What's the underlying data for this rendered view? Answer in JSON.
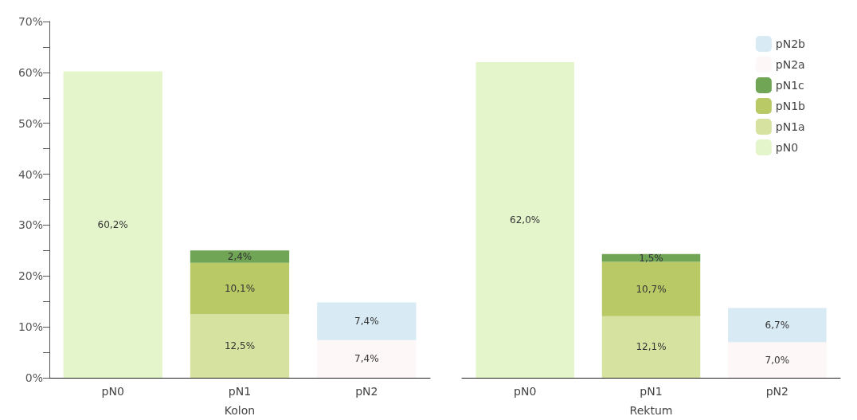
{
  "chart_data": [
    {
      "type": "bar",
      "xlabel": "Kolon",
      "categories": [
        "pN0",
        "pN1",
        "pN2"
      ],
      "stacked": true,
      "legend": false,
      "grid": false,
      "ylim": [
        0,
        70
      ],
      "yticks": [
        {
          "value": 0,
          "label": "0%"
        },
        {
          "value": 5,
          "label": null
        },
        {
          "value": 10,
          "label": "10%"
        },
        {
          "value": 15,
          "label": null
        },
        {
          "value": 20,
          "label": "20%"
        },
        {
          "value": 25,
          "label": null
        },
        {
          "value": 30,
          "label": "30%"
        },
        {
          "value": 35,
          "label": null
        },
        {
          "value": 40,
          "label": "40%"
        },
        {
          "value": 45,
          "label": null
        },
        {
          "value": 50,
          "label": "50%"
        },
        {
          "value": 55,
          "label": null
        },
        {
          "value": 60,
          "label": "60%"
        },
        {
          "value": 65,
          "label": null
        },
        {
          "value": 70,
          "label": "70%"
        }
      ],
      "series": [
        {
          "color": "#e4f5cc",
          "values": [
            60.2,
            null,
            null
          ],
          "value_labels": [
            "60,2%",
            null,
            null
          ]
        },
        {
          "color": "#d6e3a0",
          "values": [
            null,
            12.5,
            null
          ],
          "value_labels": [
            null,
            "12,5%",
            null
          ]
        },
        {
          "color": "#b8c965",
          "values": [
            null,
            10.1,
            null
          ],
          "value_labels": [
            null,
            "10,1%",
            null
          ]
        },
        {
          "color": "#6fa555",
          "values": [
            null,
            2.4,
            null
          ],
          "value_labels": [
            null,
            "2,4%",
            null
          ]
        },
        {
          "color": "#fdf7f7",
          "values": [
            null,
            null,
            7.4
          ],
          "value_labels": [
            null,
            null,
            "7,4%"
          ]
        },
        {
          "color": "#d8eaf4",
          "values": [
            null,
            null,
            7.4
          ],
          "value_labels": [
            null,
            null,
            "7,4%"
          ]
        }
      ]
    },
    {
      "type": "bar",
      "xlabel": "Rektum",
      "categories": [
        "pN0",
        "pN1",
        "pN2"
      ],
      "stacked": true,
      "legend": "top right",
      "grid": false,
      "tick_labels": "x",
      "ylim": [
        0,
        70
      ],
      "series": [
        {
          "name": "pN0",
          "color": "#e4f5cc",
          "values": [
            62.0,
            null,
            null
          ],
          "value_labels": [
            "62,0%",
            null,
            null
          ]
        },
        {
          "name": "pN1a",
          "color": "#d6e3a0",
          "values": [
            null,
            12.1,
            null
          ],
          "value_labels": [
            null,
            "12,1%",
            null
          ]
        },
        {
          "name": "pN1b",
          "color": "#b8c965",
          "values": [
            null,
            10.7,
            null
          ],
          "value_labels": [
            null,
            "10,7%",
            null
          ]
        },
        {
          "name": "pN1c",
          "color": "#6fa555",
          "values": [
            null,
            1.5,
            null
          ],
          "value_labels": [
            null,
            "1,5%",
            null
          ]
        },
        {
          "name": "pN2a",
          "color": "#fdf7f7",
          "values": [
            null,
            null,
            7.0
          ],
          "value_labels": [
            null,
            null,
            "7,0%"
          ]
        },
        {
          "name": "pN2b",
          "color": "#d8eaf4",
          "values": [
            null,
            null,
            6.7
          ],
          "value_labels": [
            null,
            null,
            "6,7%"
          ]
        }
      ]
    }
  ]
}
